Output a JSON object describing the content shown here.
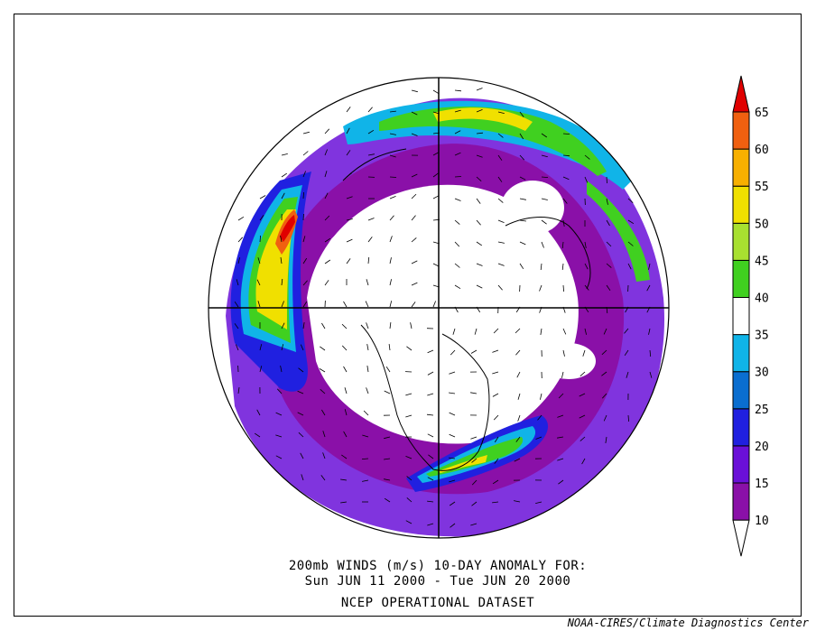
{
  "title": {
    "line1": "200mb WINDS (m/s)   10-DAY ANOMALY FOR:",
    "line2": "Sun JUN 11 2000 - Tue JUN 20 2000",
    "line3": "NCEP OPERATIONAL DATASET"
  },
  "credit": "NOAA-CIRES/Climate Diagnostics Center",
  "colorbar": {
    "levels": [
      "10",
      "15",
      "20",
      "25",
      "30",
      "35",
      "40",
      "45",
      "50",
      "55",
      "60",
      "65"
    ],
    "colors": [
      "#8a10a8",
      "#6a10d8",
      "#2020e0",
      "#0a6ed0",
      "#10b4e8",
      "#ffffff",
      "#40d020",
      "#a8e030",
      "#f0e000",
      "#f8b000",
      "#f06010",
      "#e00000"
    ]
  },
  "map": {
    "projection": "north polar stereographic",
    "field": "200mb wind speed anomaly"
  }
}
